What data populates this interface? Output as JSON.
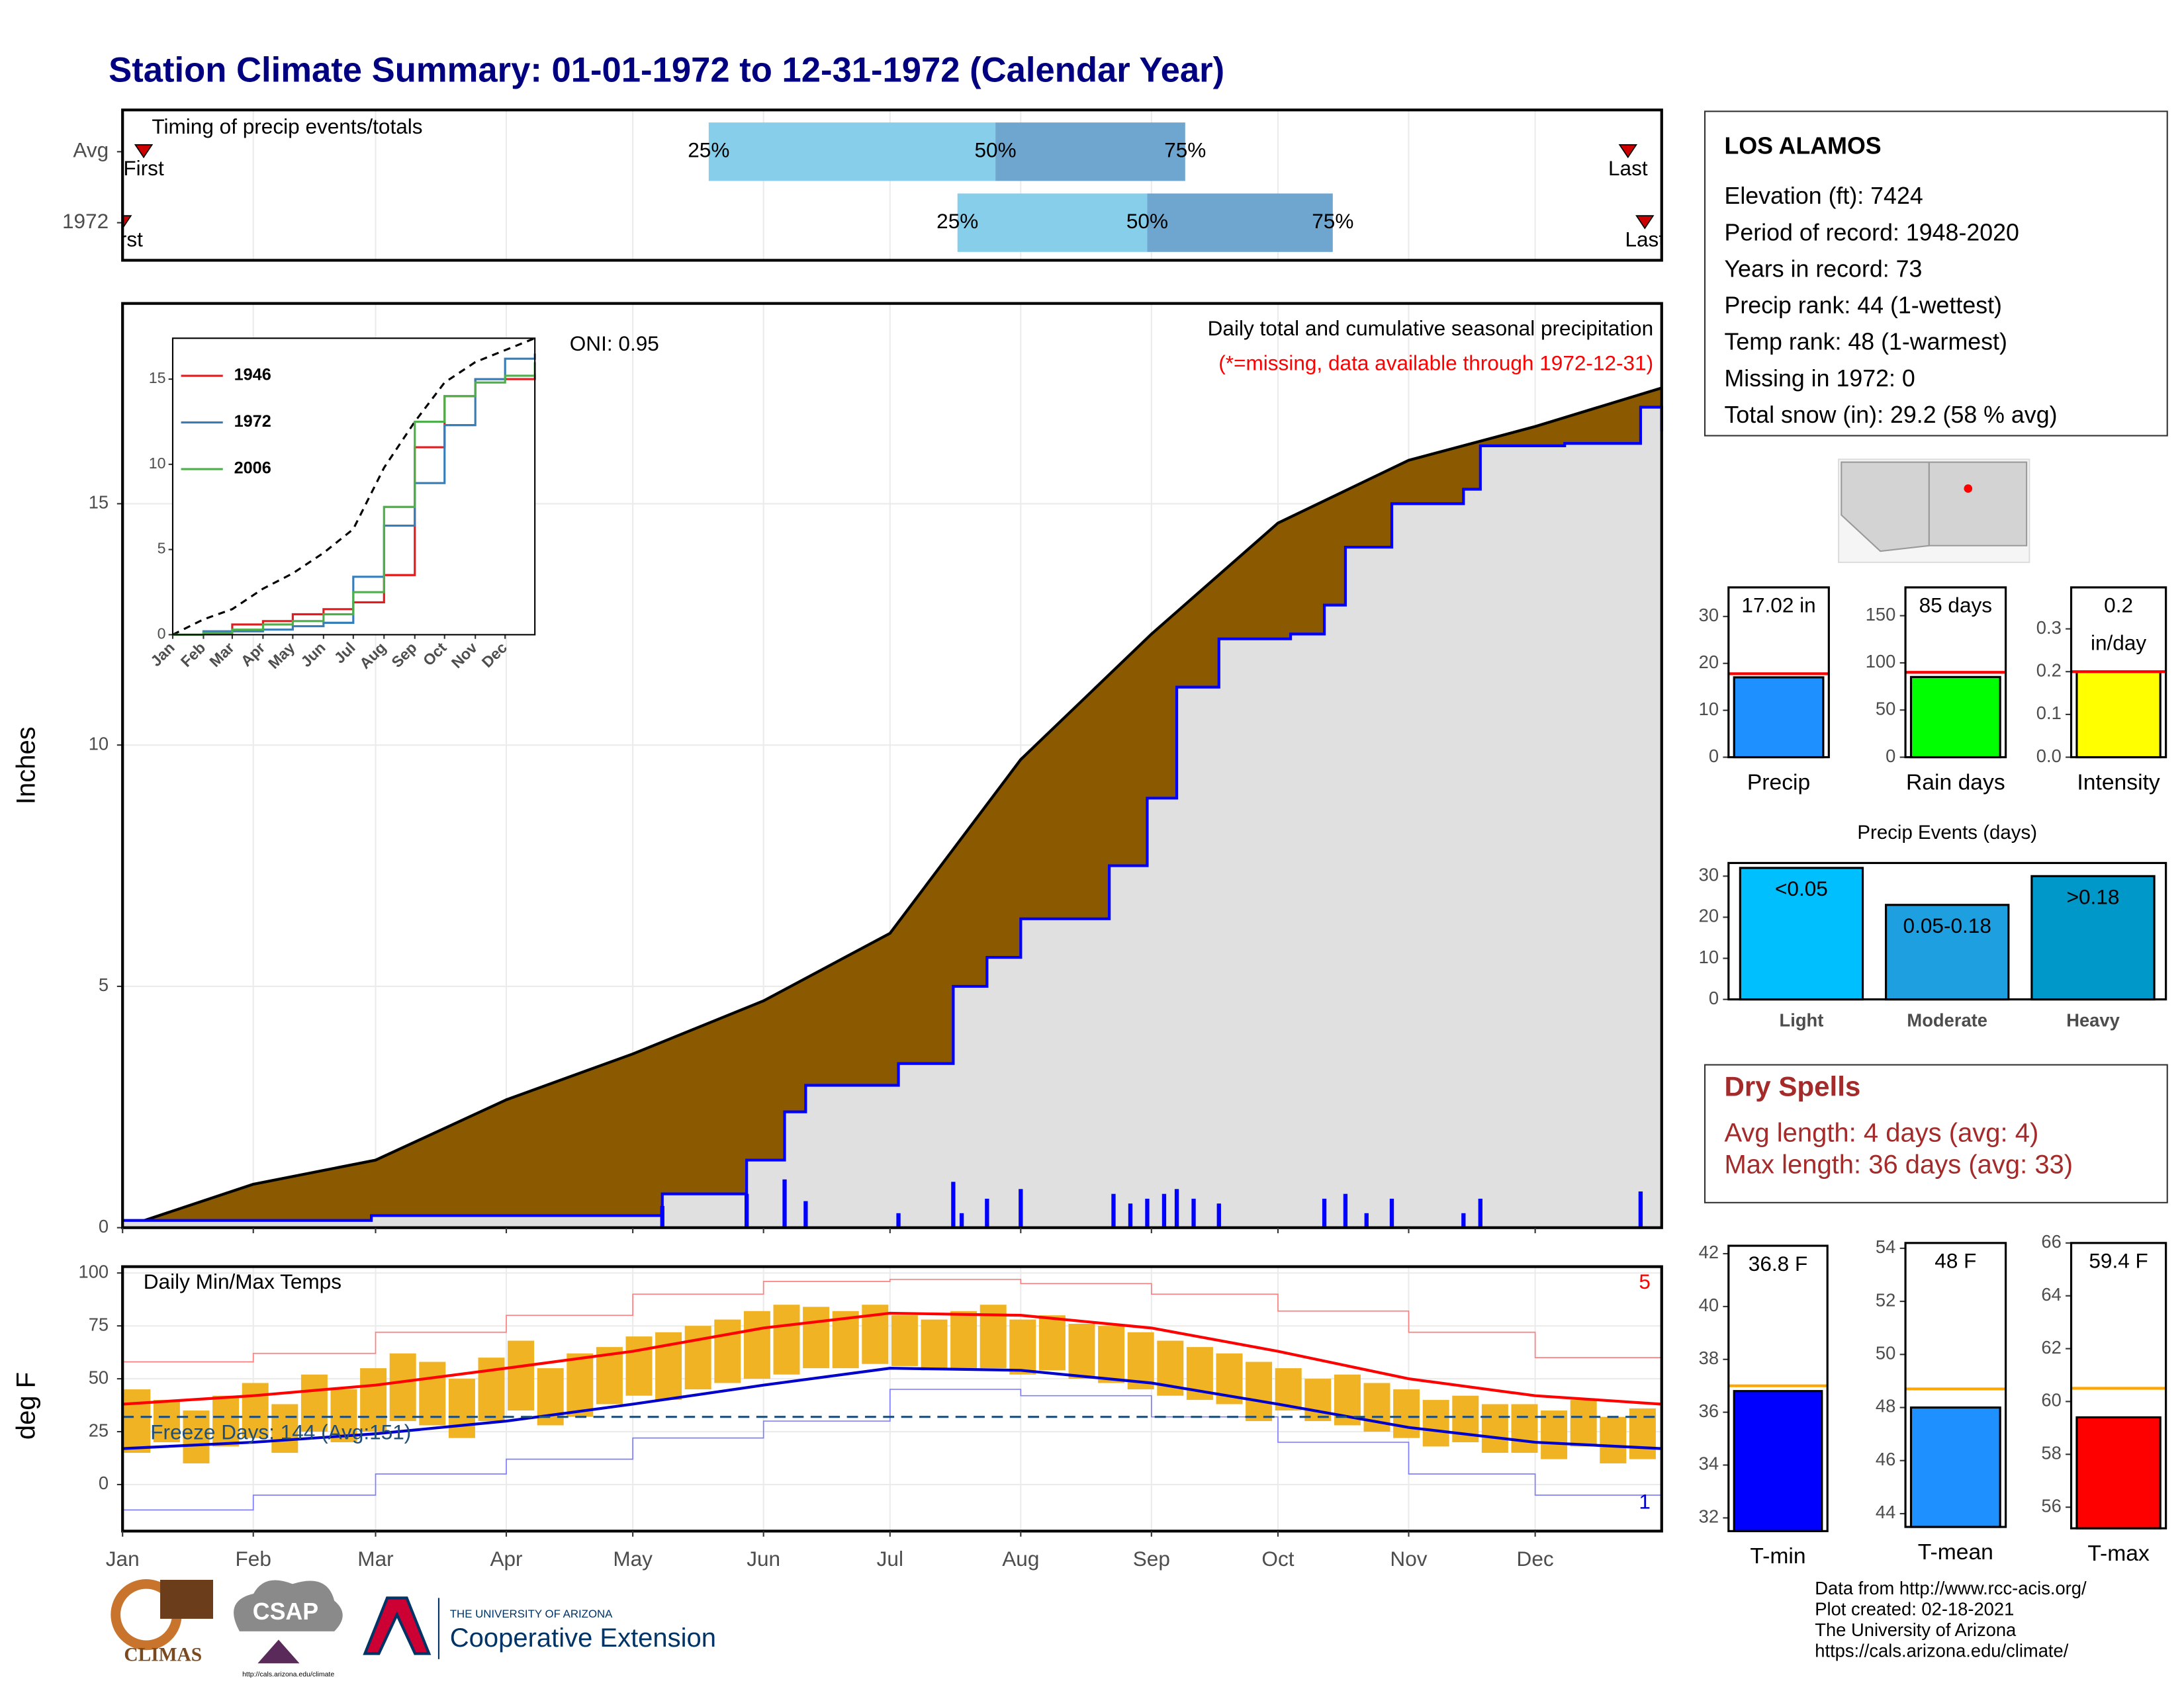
{
  "title": "Station Climate Summary: 01-01-1972 to 12-31-1972 (Calendar Year)",
  "station": {
    "name": "LOS ALAMOS",
    "lines": [
      "Elevation (ft): 7424",
      "Period of record: 1948-2020",
      "Years in record: 73",
      "Precip rank: 44 (1-wettest)",
      "Temp rank: 48 (1-warmest)",
      "Missing in 1972: 0",
      "Total snow (in): 29.2 (58 % avg)"
    ]
  },
  "dry_spells": {
    "title": "Dry Spells",
    "lines": [
      "Avg length: 4 days (avg: 4)",
      "Max length: 36 days (avg: 33)"
    ]
  },
  "footer": [
    "Data from http://www.rcc-acis.org/",
    "Plot created: 02-18-2021",
    "The University of Arizona",
    "https://cals.arizona.edu/climate/"
  ],
  "logos": {
    "climas": "CLIMAS",
    "csap": "CSAP",
    "csap_url": "http://cals.arizona.edu/climate",
    "ua": "THE UNIVERSITY OF ARIZONA",
    "extension": "Cooperative Extension"
  },
  "chart_data": [
    {
      "type": "timing",
      "title": "Timing of precip events/totals",
      "categories": [
        "Avg",
        "1972"
      ],
      "xlim": [
        1,
        366
      ],
      "series": [
        {
          "name": "25%",
          "values": [
            140,
            199
          ],
          "color": "#87ceeb"
        },
        {
          "name": "50%",
          "values": [
            208,
            244
          ],
          "color": "#6ea6cf"
        },
        {
          "name": "75%",
          "values": [
            253,
            288
          ]
        }
      ],
      "first": [
        6,
        1
      ],
      "last": [
        358,
        362
      ],
      "first_label": "First",
      "last_label": "Last",
      "marker_color": "#cc0000"
    },
    {
      "type": "cumulative",
      "title": "Daily total and cumulative seasonal precipitation",
      "subtitle": "(*=missing, data available through 1972-12-31)",
      "annotation": "ONI: 0.95",
      "y_label": "Inches",
      "xlim": [
        1,
        366
      ],
      "ylim": [
        0,
        19.15
      ],
      "yticks": [
        0,
        5,
        10,
        15
      ],
      "average": {
        "x": [
          1,
          32,
          61,
          92,
          122,
          153,
          183,
          214,
          245,
          275,
          306,
          336,
          366
        ],
        "values": [
          0,
          0.9,
          1.4,
          2.65,
          3.6,
          4.7,
          6.1,
          9.7,
          12.3,
          14.6,
          15.9,
          16.6,
          17.4
        ],
        "color": "#8b5a00"
      },
      "cumulative": {
        "x": [
          1,
          60,
          129,
          149,
          158,
          163,
          185,
          198,
          206,
          214,
          235,
          244,
          251,
          261,
          278,
          286,
          291,
          302,
          319,
          323,
          343,
          361,
          366
        ],
        "values": [
          0.15,
          0.25,
          0.7,
          1.4,
          2.4,
          2.95,
          3.4,
          5.0,
          5.6,
          6.4,
          7.5,
          8.9,
          11.2,
          12.2,
          12.3,
          12.9,
          14.1,
          15.0,
          15.3,
          16.2,
          16.25,
          17.0,
          16.5
        ],
        "color": "#0000ff",
        "fill": "#e0e0e0"
      },
      "daily": {
        "x": [
          129,
          149,
          158,
          163,
          185,
          198,
          200,
          206,
          214,
          236,
          240,
          244,
          248,
          251,
          255,
          261,
          286,
          291,
          296,
          302,
          319,
          323,
          361
        ],
        "values": [
          0.45,
          0.7,
          1.0,
          0.55,
          0.3,
          0.95,
          0.3,
          0.6,
          0.8,
          0.7,
          0.5,
          0.6,
          0.7,
          0.8,
          0.6,
          0.5,
          0.6,
          0.7,
          0.3,
          0.6,
          0.3,
          0.6,
          0.75
        ],
        "color": "#0000ff"
      }
    },
    {
      "type": "line",
      "xlim": [
        1,
        366
      ],
      "ylim": [
        0,
        17.4
      ],
      "yticks": [
        0,
        5,
        10,
        15
      ],
      "xticks": [
        {
          "value": 1,
          "label": "Jan"
        },
        {
          "value": 32,
          "label": "Feb"
        },
        {
          "value": 61,
          "label": "Mar"
        },
        {
          "value": 92,
          "label": "Apr"
        },
        {
          "value": 122,
          "label": "May"
        },
        {
          "value": 153,
          "label": "Jun"
        },
        {
          "value": 183,
          "label": "Jul"
        },
        {
          "value": 214,
          "label": "Aug"
        },
        {
          "value": 245,
          "label": "Sep"
        },
        {
          "value": 275,
          "label": "Oct"
        },
        {
          "value": 306,
          "label": "Nov"
        },
        {
          "value": 336,
          "label": "Dec"
        }
      ],
      "x": [
        1,
        32,
        61,
        92,
        122,
        153,
        183,
        214,
        245,
        275,
        306,
        336,
        366
      ],
      "series": [
        {
          "name": "1946",
          "color": "#e41a1c",
          "values": [
            0,
            0.1,
            0.6,
            0.8,
            1.2,
            1.5,
            1.9,
            3.5,
            11.0,
            14.0,
            15.0,
            15.0,
            15.3
          ]
        },
        {
          "name": "1972",
          "color": "#377eb8",
          "values": [
            0,
            0.2,
            0.2,
            0.3,
            0.5,
            0.7,
            3.4,
            6.4,
            8.9,
            12.3,
            15.0,
            16.2,
            16.5
          ]
        },
        {
          "name": "2006",
          "color": "#4daf4a",
          "values": [
            0,
            0.1,
            0.3,
            0.6,
            0.8,
            1.2,
            2.5,
            7.5,
            12.5,
            14.0,
            14.8,
            15.2,
            16.0
          ]
        }
      ],
      "average": {
        "color": "#000000",
        "values": [
          0,
          0.9,
          1.5,
          2.7,
          3.6,
          4.8,
          6.2,
          9.8,
          12.5,
          14.8,
          16.0,
          16.7,
          17.4
        ]
      }
    },
    {
      "type": "temperature",
      "title": "Daily Min/Max Temps",
      "y_label": "deg F",
      "annotation": "Freeze Days: 144 (Avg:151)",
      "freeze": 32,
      "record_high_days": 5,
      "record_low_days": 1,
      "xlim": [
        1,
        366
      ],
      "ylim": [
        -22,
        103
      ],
      "yticks": [
        0,
        25,
        50,
        75,
        100
      ],
      "xticks": [
        {
          "value": 1,
          "label": "Jan"
        },
        {
          "value": 32,
          "label": "Feb"
        },
        {
          "value": 61,
          "label": "Mar"
        },
        {
          "value": 92,
          "label": "Apr"
        },
        {
          "value": 122,
          "label": "May"
        },
        {
          "value": 153,
          "label": "Jun"
        },
        {
          "value": 183,
          "label": "Jul"
        },
        {
          "value": 214,
          "label": "Aug"
        },
        {
          "value": 245,
          "label": "Sep"
        },
        {
          "value": 275,
          "label": "Oct"
        },
        {
          "value": 306,
          "label": "Nov"
        },
        {
          "value": 336,
          "label": "Dec"
        }
      ],
      "x": [
        1,
        8,
        15,
        22,
        29,
        36,
        43,
        50,
        57,
        64,
        71,
        78,
        85,
        92,
        99,
        106,
        113,
        120,
        127,
        134,
        141,
        148,
        155,
        162,
        169,
        176,
        183,
        190,
        197,
        204,
        211,
        218,
        225,
        232,
        239,
        246,
        253,
        260,
        267,
        274,
        281,
        288,
        295,
        302,
        309,
        316,
        323,
        330,
        337,
        344,
        351,
        358
      ],
      "low": [
        15,
        20,
        10,
        18,
        22,
        15,
        25,
        20,
        25,
        30,
        28,
        22,
        30,
        35,
        28,
        32,
        38,
        42,
        40,
        45,
        48,
        50,
        52,
        55,
        55,
        57,
        56,
        54,
        55,
        55,
        52,
        54,
        50,
        48,
        45,
        42,
        40,
        38,
        30,
        35,
        30,
        28,
        25,
        22,
        18,
        20,
        15,
        15,
        12,
        18,
        10,
        12
      ],
      "high": [
        45,
        40,
        35,
        42,
        48,
        38,
        52,
        45,
        55,
        62,
        58,
        50,
        60,
        68,
        55,
        62,
        65,
        70,
        72,
        75,
        78,
        82,
        85,
        84,
        82,
        85,
        80,
        78,
        82,
        85,
        78,
        80,
        76,
        75,
        72,
        68,
        65,
        62,
        58,
        55,
        50,
        52,
        48,
        45,
        40,
        42,
        38,
        38,
        35,
        40,
        32,
        36
      ],
      "bar_color": "#f0b323",
      "normal_x": [
        1,
        32,
        61,
        92,
        122,
        153,
        183,
        214,
        245,
        275,
        306,
        336,
        366
      ],
      "normal_high": {
        "color": "#ff0000",
        "values": [
          38,
          42,
          47,
          55,
          63,
          74,
          81,
          80,
          74,
          63,
          50,
          42,
          38
        ]
      },
      "normal_low": {
        "color": "#0000cc",
        "values": [
          17,
          20,
          24,
          30,
          38,
          47,
          55,
          54,
          48,
          38,
          27,
          20,
          17
        ]
      },
      "record_high": {
        "color": "#ff8080",
        "values": [
          58,
          62,
          72,
          80,
          90,
          96,
          97,
          95,
          90,
          82,
          72,
          60,
          56
        ]
      },
      "record_low": {
        "color": "#8080ff",
        "values": [
          -12,
          -5,
          5,
          12,
          22,
          30,
          45,
          42,
          32,
          20,
          5,
          -5,
          -8
        ]
      }
    },
    {
      "type": "summary",
      "category": "Precip",
      "value": 17.02,
      "value_labels": [
        "17.02 in"
      ],
      "average": 17.8,
      "color": "#1e90ff",
      "avg_color": "#ff0000",
      "ylim": [
        0,
        36.2
      ],
      "yticks": [
        0,
        10,
        20,
        30
      ]
    },
    {
      "type": "summary",
      "category": "Rain days",
      "value": 85,
      "value_labels": [
        "85 days"
      ],
      "average": 90,
      "color": "#00ff00",
      "avg_color": "#ff0000",
      "ylim": [
        0,
        180
      ],
      "yticks": [
        0,
        50,
        100,
        150
      ]
    },
    {
      "type": "summary",
      "category": "Intensity",
      "value": 0.2,
      "value_labels": [
        "0.2",
        "in/day"
      ],
      "average": 0.2,
      "color": "#ffff00",
      "avg_color": "#ff0000",
      "ylim": [
        0,
        0.397
      ],
      "yticks": [
        {
          "value": 0,
          "label": "0.0"
        },
        0.1,
        0.2,
        0.3
      ]
    },
    {
      "type": "bar",
      "title": "Precip Events (days)",
      "categories": [
        "Light",
        "Moderate",
        "Heavy"
      ],
      "values": [
        32,
        23,
        30
      ],
      "value_labels": [
        "<0.05",
        "0.05-0.18",
        ">0.18"
      ],
      "colors": [
        "#00bfff",
        "#1e9fe0",
        "#0098c8"
      ],
      "ylim": [
        0,
        33.2
      ],
      "yticks": [
        0,
        10,
        20,
        30
      ]
    },
    {
      "type": "summary",
      "category": "T-min",
      "value": 36.8,
      "value_labels": [
        "36.8 F"
      ],
      "average": 37.0,
      "color": "#0000ff",
      "avg_color": "#ffa500",
      "ylim": [
        31.5,
        42.3
      ],
      "yticks": [
        32,
        34,
        36,
        38,
        40,
        42
      ]
    },
    {
      "type": "summary",
      "category": "T-mean",
      "value": 48,
      "value_labels": [
        "48 F"
      ],
      "average": 48.7,
      "color": "#1e90ff",
      "avg_color": "#ffa500",
      "ylim": [
        43.5,
        54.2
      ],
      "yticks": [
        44,
        46,
        48,
        50,
        52,
        54
      ]
    },
    {
      "type": "summary",
      "category": "T-max",
      "value": 59.4,
      "value_labels": [
        "59.4 F"
      ],
      "average": 60.5,
      "color": "#ff0000",
      "avg_color": "#ffa500",
      "ylim": [
        55.2,
        66
      ],
      "yticks": [
        56,
        58,
        60,
        62,
        64,
        66
      ]
    }
  ]
}
